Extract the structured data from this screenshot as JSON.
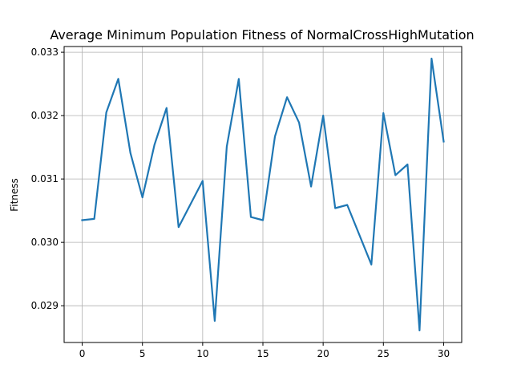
{
  "chart_data": {
    "type": "line",
    "title": "Average Minimum Population Fitness of NormalCrossHighMutation",
    "xlabel": "",
    "ylabel": "Fitness",
    "xlim": [
      -1.5,
      31.5
    ],
    "ylim": [
      0.02842,
      0.03309
    ],
    "xticks": [
      0,
      5,
      10,
      15,
      20,
      25,
      30
    ],
    "xtick_labels": [
      "0",
      "5",
      "10",
      "15",
      "20",
      "25",
      "30"
    ],
    "yticks": [
      0.029,
      0.03,
      0.031,
      0.032,
      0.033
    ],
    "ytick_labels": [
      "0.029",
      "0.030",
      "0.031",
      "0.032",
      "0.033"
    ],
    "grid": true,
    "legend": "none",
    "series": [
      {
        "color": "#1f77b4",
        "x": [
          0,
          1,
          2,
          3,
          4,
          5,
          6,
          7,
          8,
          10,
          11,
          12,
          13,
          14,
          15,
          16,
          17,
          18,
          19,
          20,
          21,
          22,
          24,
          25,
          26,
          27,
          28,
          29,
          30
        ],
        "values": [
          0.03035,
          0.03037,
          0.03205,
          0.03258,
          0.03141,
          0.03071,
          0.03154,
          0.03212,
          0.03024,
          0.03097,
          0.02876,
          0.03151,
          0.03258,
          0.0304,
          0.03035,
          0.03167,
          0.03229,
          0.03189,
          0.03088,
          0.032,
          0.03054,
          0.03059,
          0.02965,
          0.03204,
          0.03106,
          0.03123,
          0.02861,
          0.0329,
          0.03159
        ]
      }
    ]
  }
}
